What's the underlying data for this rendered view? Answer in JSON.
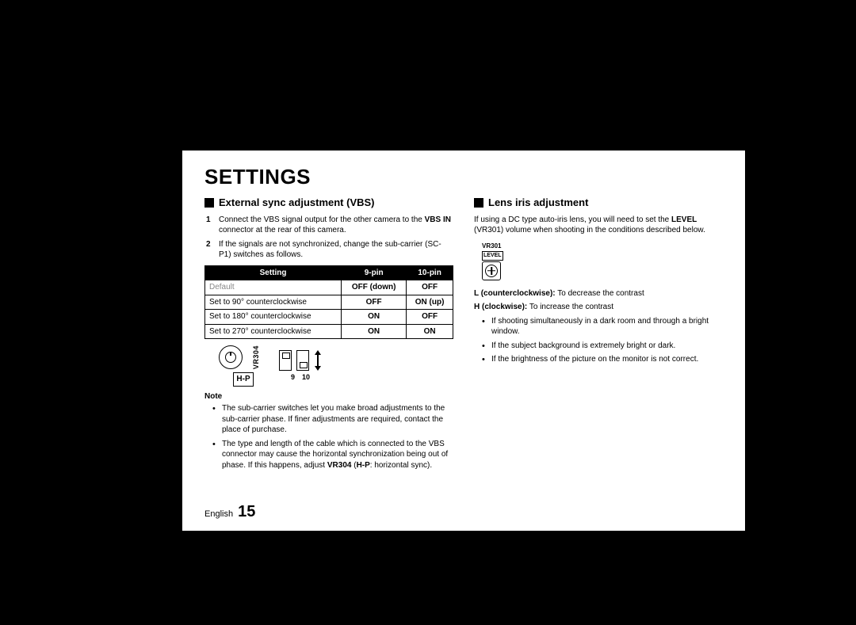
{
  "page_title": "SETTINGS",
  "left": {
    "heading": "External sync adjustment (VBS)",
    "step1_pre": "Connect the VBS signal output for the other camera to the ",
    "step1_b": "VBS IN",
    "step1_post": " connector at the rear of this camera.",
    "step2": "If the signals are not synchronized, change the sub-carrier (SC-P1) switches as follows.",
    "table": {
      "h1": "Setting",
      "h2": "9-pin",
      "h3": "10-pin",
      "r1c1": "Default",
      "r1c2": "OFF (down)",
      "r1c3": "OFF",
      "r2c1": "Set to 90° counterclockwise",
      "r2c2": "OFF",
      "r2c3": "ON (up)",
      "r3c1": "Set to 180° counterclockwise",
      "r3c2": "ON",
      "r3c3": "OFF",
      "r4c1": "Set to 270° counterclockwise",
      "r4c2": "ON",
      "r4c3": "ON"
    },
    "diagram": {
      "vr_label": "VR304",
      "hp": "H-P",
      "d1": "9",
      "d2": "10"
    },
    "note_label": "Note",
    "note1": "The sub-carrier switches let you make broad adjustments to the sub-carrier phase. If finer adjustments are required, contact the place of purchase.",
    "note2_pre": "The type and length of the cable which is connected to the VBS connector may cause the horizontal synchronization being out of phase. If this happens, adjust ",
    "note2_b1": "VR304",
    "note2_mid": " (",
    "note2_b2": "H-P",
    "note2_post": ": horizontal sync)."
  },
  "right": {
    "heading": "Lens iris adjustment",
    "intro_pre": "If using a DC type auto-iris lens, you will need to set the ",
    "intro_b": "LEVEL",
    "intro_post": " (VR301) volume when shooting in the conditions described below.",
    "vr301_title": "VR301",
    "level_badge": "LEVEL",
    "l_label": "L (counterclockwise):",
    "l_text": "  To decrease the contrast",
    "h_label": "H (clockwise):",
    "h_text": "  To increase the contrast",
    "b1": "If shooting simultaneously in a dark room and through a bright window.",
    "b2": "If the subject background is extremely bright or dark.",
    "b3": "If the brightness of the picture on the monitor is not correct."
  },
  "footer": {
    "lang": "English",
    "page": "15"
  }
}
